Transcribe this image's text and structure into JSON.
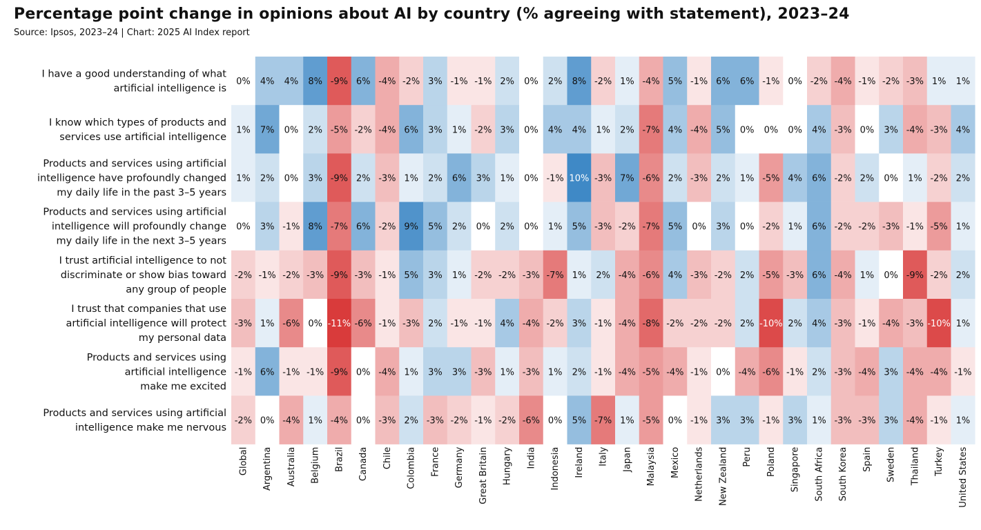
{
  "title": "Percentage point change in opinions about AI by country (% agreeing with statement), 2023–24",
  "subtitle": "Source: Ipsos, 2023–24 | Chart: 2025 AI Index report",
  "chart_data": {
    "type": "heatmap",
    "title": "Percentage point change in opinions about AI by country (% agreeing with statement), 2023–24",
    "subtitle": "Source: Ipsos, 2023–24 | Chart: 2025 AI Index report",
    "unit": "%",
    "color_scale": {
      "negative": "#d93b3b",
      "zero": "#ffffff",
      "positive": "#2f7fc1",
      "max_abs": 11
    },
    "columns": [
      "Global",
      "Argentina",
      "Australia",
      "Belgium",
      "Brazil",
      "Canada",
      "Chile",
      "Colombia",
      "France",
      "Germany",
      "Great Britain",
      "Hungary",
      "India",
      "Indonesia",
      "Ireland",
      "Italy",
      "Japan",
      "Malaysia",
      "Mexico",
      "Netherlands",
      "New Zealand",
      "Peru",
      "Poland",
      "Singapore",
      "South Africa",
      "South Korea",
      "Spain",
      "Sweden",
      "Thailand",
      "Turkey",
      "United States"
    ],
    "rows": [
      {
        "label": [
          "I have a good understanding of what",
          "artificial intelligence is"
        ],
        "values": [
          0,
          4,
          4,
          8,
          -9,
          6,
          -4,
          -2,
          3,
          -1,
          -1,
          2,
          0,
          2,
          8,
          -2,
          1,
          -4,
          5,
          -1,
          6,
          6,
          -1,
          0,
          -2,
          -4,
          -1,
          -2,
          -3,
          1,
          1
        ]
      },
      {
        "label": [
          "I know which types of products and",
          "services use artificial intelligence"
        ],
        "values": [
          1,
          7,
          0,
          2,
          -5,
          -2,
          -4,
          6,
          3,
          1,
          -2,
          3,
          0,
          4,
          4,
          1,
          2,
          -7,
          4,
          -4,
          5,
          0,
          0,
          0,
          4,
          -3,
          0,
          3,
          -4,
          -3,
          4
        ]
      },
      {
        "label": [
          "Products and services using artificial",
          "intelligence have profoundly changed",
          "my daily life in the past 3–5 years"
        ],
        "values": [
          1,
          2,
          0,
          3,
          -9,
          2,
          -3,
          1,
          2,
          6,
          3,
          1,
          0,
          -1,
          10,
          -3,
          7,
          -6,
          2,
          -3,
          2,
          1,
          -5,
          4,
          6,
          -2,
          2,
          0,
          1,
          -2,
          2
        ]
      },
      {
        "label": [
          "Products and services using artificial",
          "intelligence will profoundly change",
          "my daily life in the next 3–5 years"
        ],
        "values": [
          0,
          3,
          -1,
          8,
          -7,
          6,
          -2,
          9,
          5,
          2,
          0,
          2,
          0,
          1,
          5,
          -3,
          -2,
          -7,
          5,
          0,
          3,
          0,
          -2,
          1,
          6,
          -2,
          -2,
          -3,
          -1,
          -5,
          1
        ]
      },
      {
        "label": [
          "I trust artificial intelligence to not",
          "discriminate or show bias toward",
          "any group of people"
        ],
        "values": [
          -2,
          -1,
          -2,
          -3,
          -9,
          -3,
          -1,
          5,
          3,
          1,
          -2,
          -2,
          -3,
          -7,
          1,
          2,
          -4,
          -6,
          4,
          -3,
          -2,
          2,
          -5,
          -3,
          6,
          -4,
          1,
          0,
          -9,
          -2,
          2
        ]
      },
      {
        "label": [
          "I trust that companies that use",
          "artificial intelligence will protect",
          "my personal data"
        ],
        "values": [
          -3,
          1,
          -6,
          0,
          -11,
          -6,
          -1,
          -3,
          2,
          -1,
          -1,
          4,
          -4,
          -2,
          3,
          -1,
          -4,
          -8,
          -2,
          -2,
          -2,
          2,
          -10,
          2,
          4,
          -3,
          -1,
          -4,
          -3,
          -10,
          1
        ]
      },
      {
        "label": [
          "Products and services using",
          "artificial intelligence",
          "make me excited"
        ],
        "values": [
          -1,
          6,
          -1,
          -1,
          -9,
          0,
          -4,
          1,
          3,
          3,
          -3,
          1,
          -3,
          1,
          2,
          -1,
          -4,
          -5,
          -4,
          -1,
          0,
          -4,
          -6,
          -1,
          2,
          -3,
          -4,
          3,
          -4,
          -4,
          -1
        ]
      },
      {
        "label": [
          "Products and services using artificial",
          "intelligence make me nervous"
        ],
        "values": [
          -2,
          0,
          -4,
          1,
          -4,
          0,
          -3,
          2,
          -3,
          -2,
          -1,
          -2,
          -6,
          0,
          5,
          -7,
          1,
          -5,
          0,
          -1,
          3,
          3,
          -1,
          3,
          1,
          -3,
          -3,
          3,
          -4,
          -1,
          1
        ]
      }
    ]
  }
}
